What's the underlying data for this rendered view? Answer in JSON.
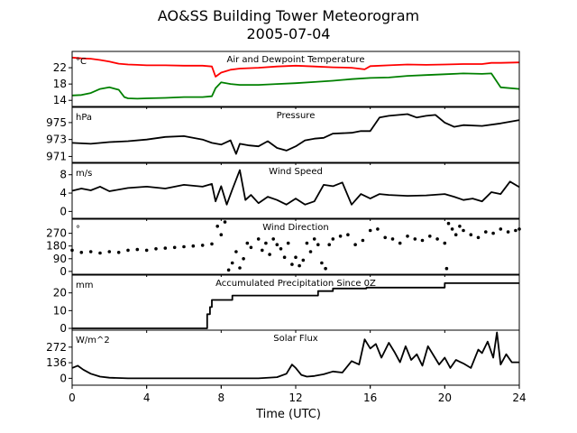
{
  "figure": {
    "title": "AO&SS Building Tower Meteorogram",
    "subtitle": "2005-07-04",
    "xlabel": "Time (UTC)"
  },
  "chart_data": [
    {
      "type": "line",
      "title": "Air and Dewpoint Temperature",
      "unit": "°C",
      "xlim": [
        0,
        24
      ],
      "ylim": [
        12.5,
        26
      ],
      "yticks": [
        14,
        18,
        22
      ],
      "series": [
        {
          "color": "#ff0000",
          "x": [
            0,
            0.5,
            1,
            1.5,
            2,
            2.5,
            3,
            3.5,
            4,
            5,
            6,
            7,
            7.5,
            7.7,
            8,
            8.5,
            9,
            10,
            11,
            12,
            13,
            14,
            15,
            15.7,
            16,
            17,
            18,
            19,
            20,
            21,
            22,
            22.5,
            23,
            24
          ],
          "y": [
            24.5,
            24.3,
            24.2,
            23.9,
            23.5,
            23,
            22.8,
            22.7,
            22.6,
            22.6,
            22.5,
            22.5,
            22.3,
            19.8,
            20.8,
            21.5,
            21.8,
            22,
            22.3,
            22.5,
            22.3,
            22.1,
            22,
            21.6,
            22.4,
            22.6,
            22.8,
            22.7,
            22.8,
            22.9,
            22.9,
            23.2,
            23.2,
            23.3
          ]
        },
        {
          "color": "#008000",
          "x": [
            0,
            0.5,
            1,
            1.5,
            2,
            2.5,
            2.8,
            3,
            3.5,
            4,
            5,
            6,
            7,
            7.5,
            7.7,
            8,
            8.5,
            9,
            10,
            11,
            12,
            13,
            14,
            15,
            16,
            17,
            18,
            19,
            20,
            21,
            22,
            22.5,
            23,
            24
          ],
          "y": [
            15.2,
            15.3,
            15.8,
            16.8,
            17.2,
            16.6,
            14.8,
            14.5,
            14.4,
            14.5,
            14.6,
            14.8,
            14.8,
            15,
            17,
            18.4,
            18,
            17.8,
            17.8,
            18,
            18.2,
            18.5,
            18.8,
            19.2,
            19.5,
            19.6,
            20,
            20.2,
            20.4,
            20.6,
            20.5,
            20.6,
            17.2,
            16.8
          ]
        }
      ]
    },
    {
      "type": "line",
      "title": "Pressure",
      "unit": "hPa",
      "xlim": [
        0,
        24
      ],
      "ylim": [
        970.3,
        976.8
      ],
      "yticks": [
        971,
        973,
        975
      ],
      "series": [
        {
          "color": "#000000",
          "x": [
            0,
            1,
            2,
            3,
            4,
            5,
            6,
            7,
            7.5,
            8,
            8.5,
            8.8,
            9,
            9.5,
            10,
            10.5,
            11,
            11.5,
            12,
            12.5,
            13,
            13.5,
            14,
            15,
            15.5,
            16,
            16.5,
            17,
            18,
            18.5,
            19,
            19.5,
            20,
            20.5,
            21,
            22,
            23,
            24
          ],
          "y": [
            972.6,
            972.5,
            972.7,
            972.8,
            973,
            973.3,
            973.4,
            973.0,
            972.6,
            972.4,
            972.9,
            971.3,
            972.5,
            972.3,
            972.2,
            972.8,
            972.0,
            971.7,
            972.2,
            972.9,
            973.1,
            973.2,
            973.7,
            973.8,
            974.0,
            974.0,
            975.6,
            975.8,
            976.0,
            975.6,
            975.8,
            975.9,
            975.0,
            974.5,
            974.7,
            974.6,
            974.9,
            975.3
          ]
        }
      ]
    },
    {
      "type": "line",
      "title": "Wind Speed",
      "unit": "m/s",
      "xlim": [
        0,
        24
      ],
      "ylim": [
        -1.5,
        10.5
      ],
      "yticks": [
        0,
        4,
        8
      ],
      "series": [
        {
          "color": "#000000",
          "x": [
            0,
            0.5,
            1,
            1.5,
            2,
            3,
            4,
            5,
            6,
            7,
            7.5,
            7.7,
            8,
            8.3,
            8.6,
            9,
            9.3,
            9.6,
            10,
            10.5,
            11,
            11.5,
            12,
            12.5,
            13,
            13.5,
            14,
            14.5,
            15,
            15.5,
            16,
            16.5,
            17,
            18,
            19,
            20,
            20.5,
            21,
            21.5,
            22,
            22.5,
            23,
            23.5,
            24
          ],
          "y": [
            4.5,
            5,
            4.6,
            5.4,
            4.4,
            5.1,
            5.4,
            5.0,
            5.8,
            5.4,
            6.0,
            2.2,
            5.5,
            1.5,
            4.8,
            9.0,
            2.5,
            3.6,
            1.8,
            3.2,
            2.5,
            1.5,
            2.8,
            1.5,
            2.2,
            5.8,
            5.5,
            6.3,
            1.5,
            3.8,
            2.8,
            3.8,
            3.6,
            3.4,
            3.5,
            3.8,
            3.2,
            2.5,
            2.8,
            2.2,
            4.2,
            3.8,
            6.5,
            5.3
          ]
        }
      ]
    },
    {
      "type": "scatter",
      "title": "Wind Direction",
      "unit": "°",
      "xlim": [
        0,
        24
      ],
      "ylim": [
        -20,
        370
      ],
      "yticks": [
        0,
        90,
        180,
        270
      ],
      "series": [
        {
          "color": "#000000",
          "x": [
            0,
            0.5,
            1,
            1.5,
            2,
            2.5,
            3,
            3.5,
            4,
            4.5,
            5,
            5.5,
            6,
            6.5,
            7,
            7.5,
            7.8,
            8,
            8.2,
            8.4,
            8.6,
            8.8,
            9,
            9.2,
            9.4,
            9.6,
            10,
            10.2,
            10.4,
            10.6,
            10.8,
            11,
            11.2,
            11.4,
            11.6,
            11.8,
            12,
            12.2,
            12.4,
            12.6,
            12.8,
            13,
            13.2,
            13.4,
            13.6,
            13.8,
            14,
            14.4,
            14.8,
            15.2,
            15.6,
            16,
            16.4,
            16.8,
            17.2,
            17.6,
            18,
            18.4,
            18.8,
            19.2,
            19.6,
            20,
            20.1,
            20.2,
            20.4,
            20.6,
            20.8,
            21,
            21.4,
            21.8,
            22.2,
            22.6,
            23,
            23.4,
            23.8,
            24
          ],
          "y": [
            150,
            135,
            140,
            130,
            140,
            135,
            150,
            155,
            150,
            160,
            165,
            170,
            175,
            180,
            185,
            195,
            320,
            260,
            350,
            10,
            60,
            140,
            25,
            90,
            200,
            170,
            230,
            150,
            200,
            120,
            230,
            190,
            160,
            100,
            200,
            50,
            100,
            40,
            80,
            200,
            140,
            230,
            190,
            60,
            20,
            190,
            230,
            250,
            260,
            190,
            220,
            290,
            300,
            240,
            230,
            200,
            250,
            230,
            220,
            250,
            230,
            200,
            20,
            340,
            300,
            260,
            320,
            290,
            260,
            240,
            280,
            270,
            300,
            280,
            290,
            300
          ]
        }
      ]
    },
    {
      "type": "line",
      "title": "Accumulated Precipitation Since 0Z",
      "unit": "mm",
      "xlim": [
        0,
        24
      ],
      "ylim": [
        -1,
        30
      ],
      "yticks": [
        0,
        10,
        20
      ],
      "series": [
        {
          "color": "#000000",
          "x": [
            0,
            7.25,
            7.25,
            7.4,
            7.4,
            7.5,
            7.5,
            8.6,
            8.6,
            13.2,
            13.2,
            14.0,
            14.0,
            15.8,
            15.8,
            20.0,
            20.0,
            24
          ],
          "y": [
            0,
            0,
            8,
            8,
            12,
            12,
            16,
            16,
            18.5,
            18.5,
            21,
            21,
            22.5,
            22.5,
            23,
            23,
            25.5,
            25.5
          ]
        }
      ]
    },
    {
      "type": "line",
      "title": "Solar Flux",
      "unit": "W/m^2",
      "xlim": [
        0,
        24
      ],
      "ylim": [
        -60,
        420
      ],
      "yticks": [
        0,
        136,
        272
      ],
      "series": [
        {
          "color": "#000000",
          "x": [
            0,
            0.3,
            0.6,
            1,
            1.5,
            2,
            3,
            4,
            5,
            6,
            7,
            8,
            9,
            10,
            11,
            11.5,
            11.8,
            12,
            12.3,
            12.6,
            13,
            13.5,
            14,
            14.5,
            15,
            15.4,
            15.7,
            16,
            16.3,
            16.6,
            17,
            17.3,
            17.6,
            17.9,
            18.2,
            18.5,
            18.8,
            19.1,
            19.4,
            19.7,
            20,
            20.3,
            20.6,
            21,
            21.4,
            21.8,
            22,
            22.3,
            22.6,
            22.8,
            23,
            23.3,
            23.6,
            24
          ],
          "y": [
            90,
            110,
            75,
            40,
            15,
            5,
            0,
            0,
            0,
            0,
            0,
            0,
            0,
            0,
            10,
            40,
            120,
            90,
            30,
            15,
            20,
            35,
            60,
            50,
            150,
            120,
            340,
            260,
            300,
            180,
            310,
            230,
            140,
            280,
            160,
            210,
            110,
            280,
            200,
            120,
            180,
            90,
            160,
            130,
            90,
            250,
            220,
            320,
            180,
            400,
            120,
            210,
            140,
            140
          ]
        }
      ]
    }
  ]
}
